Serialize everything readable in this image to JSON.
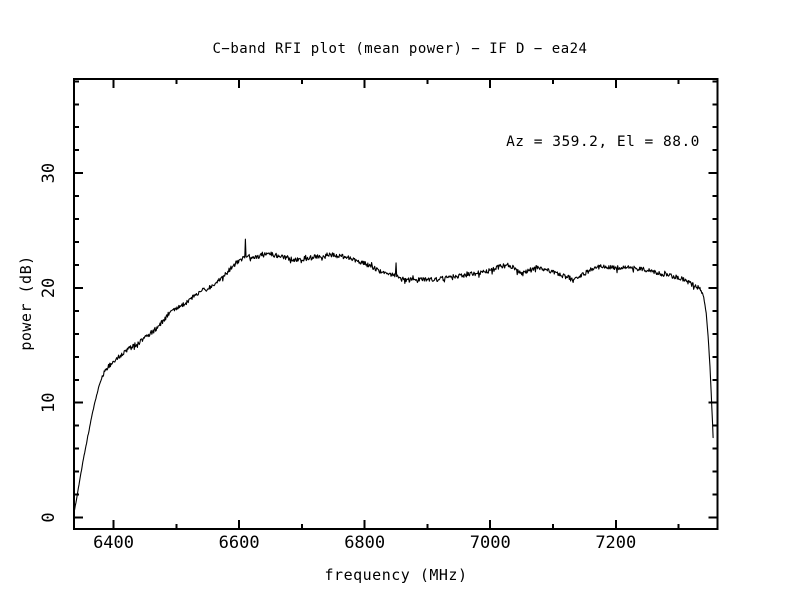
{
  "page": {
    "background": "#ffffff",
    "foreground": "#000000"
  },
  "chart_data": {
    "type": "line",
    "title": "C−band RFI plot (mean power) − IF D − ea24",
    "xlabel": "frequency (MHz)",
    "ylabel": "power (dB)",
    "annotation": "Az = 359.2, El = 88.0",
    "x_range": [
      6337,
      7362
    ],
    "y_range": [
      -1,
      38.2
    ],
    "x_major_ticks": [
      6400,
      6600,
      6800,
      7000,
      7200
    ],
    "x_minor_tick_step": 100,
    "y_major_ticks": [
      0,
      10,
      20,
      30
    ],
    "y_minor_tick_step": 2,
    "grid": false,
    "legend": "none",
    "line_color": "#000000",
    "noise_db": 0.2,
    "series": [
      {
        "name": "mean power",
        "anchors": [
          [
            6337,
            0.4
          ],
          [
            6341,
            1.6
          ],
          [
            6346,
            3.2
          ],
          [
            6351,
            4.8
          ],
          [
            6356,
            6.2
          ],
          [
            6361,
            7.6
          ],
          [
            6366,
            9.0
          ],
          [
            6371,
            10.2
          ],
          [
            6376,
            11.3
          ],
          [
            6381,
            12.1
          ],
          [
            6386,
            12.7
          ],
          [
            6391,
            13.1
          ],
          [
            6400,
            13.6
          ],
          [
            6410,
            14.1
          ],
          [
            6420,
            14.5
          ],
          [
            6430,
            14.9
          ],
          [
            6442,
            15.3
          ],
          [
            6455,
            15.9
          ],
          [
            6467,
            16.4
          ],
          [
            6480,
            17.2
          ],
          [
            6490,
            17.9
          ],
          [
            6498,
            18.2
          ],
          [
            6508,
            18.4
          ],
          [
            6518,
            18.8
          ],
          [
            6530,
            19.4
          ],
          [
            6540,
            19.8
          ],
          [
            6552,
            20.0
          ],
          [
            6562,
            20.4
          ],
          [
            6572,
            20.8
          ],
          [
            6580,
            21.3
          ],
          [
            6590,
            21.9
          ],
          [
            6600,
            22.4
          ],
          [
            6606,
            22.6
          ],
          [
            6609,
            22.7
          ],
          [
            6610,
            24.2
          ],
          [
            6611,
            22.7
          ],
          [
            6618,
            22.6
          ],
          [
            6628,
            22.7
          ],
          [
            6640,
            22.9
          ],
          [
            6650,
            23.0
          ],
          [
            6660,
            22.8
          ],
          [
            6673,
            22.7
          ],
          [
            6685,
            22.5
          ],
          [
            6697,
            22.5
          ],
          [
            6710,
            22.6
          ],
          [
            6721,
            22.7
          ],
          [
            6733,
            22.8
          ],
          [
            6745,
            22.9
          ],
          [
            6757,
            22.8
          ],
          [
            6769,
            22.7
          ],
          [
            6781,
            22.5
          ],
          [
            6793,
            22.3
          ],
          [
            6805,
            22.0
          ],
          [
            6817,
            21.7
          ],
          [
            6829,
            21.4
          ],
          [
            6841,
            21.2
          ],
          [
            6849,
            21.1
          ],
          [
            6850,
            22.2
          ],
          [
            6851,
            21.0
          ],
          [
            6860,
            20.8
          ],
          [
            6873,
            20.7
          ],
          [
            6885,
            20.7
          ],
          [
            6897,
            20.8
          ],
          [
            6909,
            20.7
          ],
          [
            6921,
            20.8
          ],
          [
            6933,
            20.9
          ],
          [
            6945,
            21.0
          ],
          [
            6957,
            21.1
          ],
          [
            6969,
            21.2
          ],
          [
            6981,
            21.3
          ],
          [
            6993,
            21.4
          ],
          [
            7005,
            21.6
          ],
          [
            7017,
            21.9
          ],
          [
            7027,
            22.1
          ],
          [
            7037,
            21.8
          ],
          [
            7049,
            21.3
          ],
          [
            7061,
            21.5
          ],
          [
            7072,
            21.8
          ],
          [
            7084,
            21.7
          ],
          [
            7096,
            21.4
          ],
          [
            7108,
            21.2
          ],
          [
            7120,
            21.0
          ],
          [
            7133,
            20.8
          ],
          [
            7145,
            21.1
          ],
          [
            7157,
            21.5
          ],
          [
            7169,
            21.8
          ],
          [
            7181,
            21.9
          ],
          [
            7193,
            21.8
          ],
          [
            7205,
            21.7
          ],
          [
            7217,
            21.8
          ],
          [
            7229,
            21.7
          ],
          [
            7241,
            21.6
          ],
          [
            7253,
            21.6
          ],
          [
            7265,
            21.3
          ],
          [
            7277,
            21.2
          ],
          [
            7289,
            21.0
          ],
          [
            7301,
            20.9
          ],
          [
            7308,
            20.7
          ],
          [
            7315,
            20.5
          ],
          [
            7322,
            20.3
          ],
          [
            7328,
            20.1
          ],
          [
            7333,
            20.0
          ],
          [
            7337,
            19.7
          ],
          [
            7340,
            19.2
          ],
          [
            7344,
            17.8
          ],
          [
            7347,
            15.8
          ],
          [
            7350,
            13.2
          ],
          [
            7352,
            10.8
          ],
          [
            7354,
            8.3
          ],
          [
            7355,
            7.0
          ]
        ]
      }
    ]
  }
}
